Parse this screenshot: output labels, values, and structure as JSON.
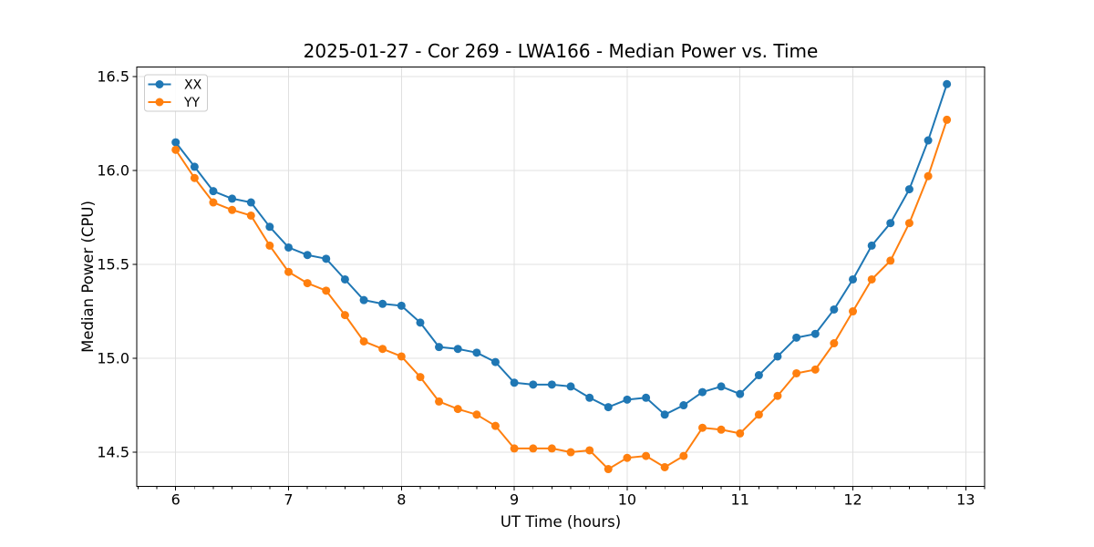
{
  "chart_data": {
    "type": "line",
    "title": "2025-01-27 - Cor 269 - LWA166 - Median Power vs. Time",
    "xlabel": "UT Time (hours)",
    "ylabel": "Median Power (CPU)",
    "x": [
      6.0,
      6.167,
      6.333,
      6.5,
      6.667,
      6.833,
      7.0,
      7.167,
      7.333,
      7.5,
      7.667,
      7.833,
      8.0,
      8.167,
      8.333,
      8.5,
      8.667,
      8.833,
      9.0,
      9.167,
      9.333,
      9.5,
      9.667,
      9.833,
      10.0,
      10.167,
      10.333,
      10.5,
      10.667,
      10.833,
      11.0,
      11.167,
      11.333,
      11.5,
      11.667,
      11.833,
      12.0,
      12.167,
      12.333,
      12.5,
      12.667,
      12.833
    ],
    "series": [
      {
        "name": "XX",
        "color": "#1f77b4",
        "values": [
          16.15,
          16.02,
          15.89,
          15.85,
          15.83,
          15.7,
          15.59,
          15.55,
          15.53,
          15.42,
          15.31,
          15.29,
          15.28,
          15.19,
          15.06,
          15.05,
          15.03,
          14.98,
          14.87,
          14.86,
          14.86,
          14.85,
          14.79,
          14.74,
          14.78,
          14.79,
          14.7,
          14.75,
          14.82,
          14.85,
          14.81,
          14.91,
          15.01,
          15.11,
          15.13,
          15.26,
          15.42,
          15.6,
          15.72,
          15.9,
          16.16,
          16.46
        ]
      },
      {
        "name": "YY",
        "color": "#ff7f0e",
        "values": [
          16.11,
          15.96,
          15.83,
          15.79,
          15.76,
          15.6,
          15.46,
          15.4,
          15.36,
          15.23,
          15.09,
          15.05,
          15.01,
          14.9,
          14.77,
          14.73,
          14.7,
          14.64,
          14.52,
          14.52,
          14.52,
          14.5,
          14.51,
          14.41,
          14.47,
          14.48,
          14.42,
          14.48,
          14.63,
          14.62,
          14.6,
          14.7,
          14.8,
          14.92,
          14.94,
          15.08,
          15.25,
          15.42,
          15.52,
          15.72,
          15.97,
          16.27
        ]
      }
    ],
    "xlim": [
      5.655,
      13.167
    ],
    "ylim": [
      14.318,
      16.551
    ],
    "x_ticks": [
      6,
      7,
      8,
      9,
      10,
      11,
      12,
      13
    ],
    "x_tick_labels": [
      "6",
      "7",
      "8",
      "9",
      "10",
      "11",
      "12",
      "13"
    ],
    "y_ticks": [
      14.5,
      15.0,
      15.5,
      16.0,
      16.5
    ],
    "y_tick_labels": [
      "14.5",
      "15.0",
      "15.5",
      "16.0",
      "16.5"
    ],
    "x_minor_tick_step": 0.166667,
    "grid": true,
    "legend": {
      "position": "upper left",
      "entries": [
        "XX",
        "YY"
      ]
    },
    "colors": {
      "grid": "#e0e0e0",
      "spine": "#000000",
      "text": "#000000",
      "background": "#ffffff",
      "legend_border": "#cccccc",
      "legend_background": "#ffffff"
    }
  }
}
